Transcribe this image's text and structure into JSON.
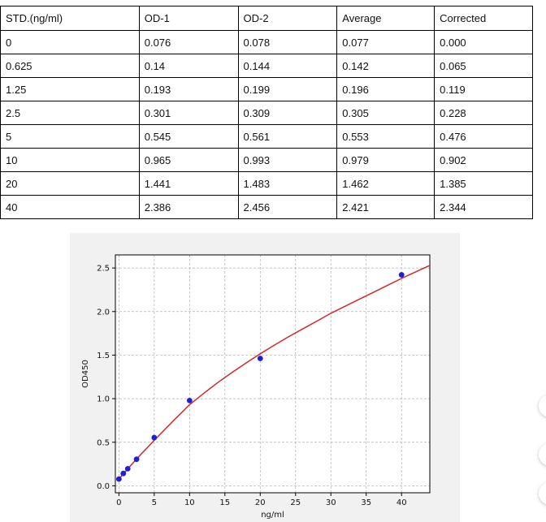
{
  "table": {
    "headers": [
      "STD.(ng/ml)",
      "OD-1",
      "OD-2",
      "Average",
      "Corrected"
    ],
    "rows": [
      [
        "0",
        "0.076",
        "0.078",
        "0.077",
        "0.000"
      ],
      [
        "0.625",
        "0.14",
        "0.144",
        "0.142",
        "0.065"
      ],
      [
        "1.25",
        "0.193",
        "0.199",
        "0.196",
        "0.119"
      ],
      [
        "2.5",
        "0.301",
        "0.309",
        "0.305",
        "0.228"
      ],
      [
        "5",
        "0.545",
        "0.561",
        "0.553",
        "0.476"
      ],
      [
        "10",
        "0.965",
        "0.993",
        "0.979",
        "0.902"
      ],
      [
        "20",
        "1.441",
        "1.483",
        "1.462",
        "1.385"
      ],
      [
        "40",
        "2.386",
        "2.456",
        "2.421",
        "2.344"
      ]
    ]
  },
  "chart_data": {
    "type": "scatter",
    "title": "",
    "xlabel": "ng/ml",
    "ylabel": "OD450",
    "xlim": [
      -0.5,
      44
    ],
    "ylim": [
      -0.08,
      2.65
    ],
    "xticks": [
      0,
      5,
      10,
      15,
      20,
      25,
      30,
      35,
      40
    ],
    "yticks": [
      0.0,
      0.5,
      1.0,
      1.5,
      2.0,
      2.5
    ],
    "xtick_labels": [
      "0",
      "5",
      "10",
      "15",
      "20",
      "25",
      "30",
      "35",
      "40"
    ],
    "ytick_labels": [
      "0.0",
      "0.5",
      "1.0",
      "1.5",
      "2.0",
      "2.5"
    ],
    "grid": true,
    "points": {
      "x": [
        0,
        0.625,
        1.25,
        2.5,
        5,
        10,
        20,
        40
      ],
      "y": [
        0.077,
        0.142,
        0.196,
        0.305,
        0.553,
        0.979,
        1.462,
        2.421
      ]
    },
    "fit_curve": {
      "x": [
        0,
        1,
        2,
        3,
        4,
        5,
        6,
        8,
        10,
        12,
        14,
        16,
        18,
        20,
        22,
        24,
        26,
        28,
        30,
        32,
        34,
        36,
        38,
        40,
        42,
        44
      ],
      "y": [
        0.077,
        0.17,
        0.262,
        0.35,
        0.435,
        0.522,
        0.605,
        0.77,
        0.93,
        1.06,
        1.185,
        1.3,
        1.41,
        1.515,
        1.615,
        1.71,
        1.8,
        1.89,
        1.98,
        2.06,
        2.14,
        2.22,
        2.3,
        2.38,
        2.455,
        2.53
      ]
    },
    "colors": {
      "points": "#1f1fd6",
      "curve": "#d62728",
      "grid": "#b0b0b0"
    }
  },
  "side_buttons": [
    "circle-button",
    "circle-button",
    "circle-button"
  ]
}
